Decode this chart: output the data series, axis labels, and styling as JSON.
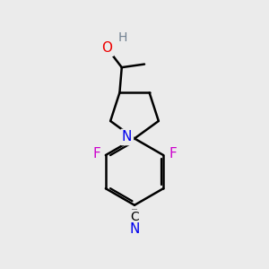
{
  "background_color": "#ebebeb",
  "atom_colors": {
    "C": "#000000",
    "N": "#0000ee",
    "O": "#ee0000",
    "F": "#cc00cc",
    "H": "#708090"
  },
  "bond_color": "#000000",
  "bond_width": 1.8
}
